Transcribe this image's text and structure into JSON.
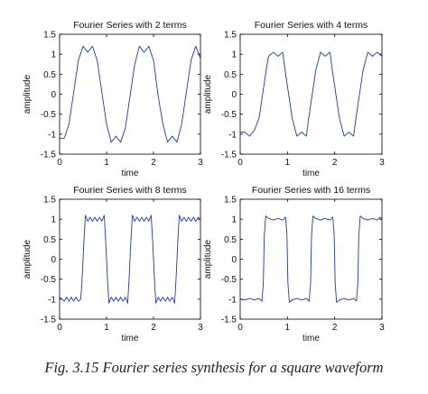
{
  "caption": "Fig. 3.15 Fourier series synthesis for a square waveform",
  "colors": {
    "line": "#1f3c9e",
    "axes": "#000000",
    "background": "#ffffff"
  },
  "chart_data": [
    {
      "type": "line",
      "title": "Fourier Series with 2 terms",
      "xlabel": "time",
      "ylabel": "amplitude",
      "xlim": [
        0,
        3
      ],
      "ylim": [
        -1.5,
        1.5
      ],
      "xticks": [
        0,
        1,
        2,
        3
      ],
      "yticks": [
        -1.5,
        -1,
        -0.5,
        0,
        0.5,
        1,
        1.5
      ],
      "grid": false,
      "series": [
        {
          "terms": 2,
          "x": [
            0,
            0.1,
            0.2,
            0.3,
            0.4,
            0.5,
            0.6,
            0.7,
            0.8,
            0.9,
            1.0,
            1.1,
            1.2,
            1.3,
            1.4,
            1.5,
            1.6,
            1.7,
            1.8,
            1.9,
            2.0,
            2.1,
            2.2,
            2.3,
            2.4,
            2.5,
            2.6,
            2.7,
            2.8,
            2.9,
            3.0
          ],
          "y": [
            -1.1,
            -1.1,
            -0.75,
            0.05,
            0.85,
            1.2,
            1.05,
            1.2,
            0.85,
            0.05,
            -0.75,
            -1.2,
            -1.05,
            -1.2,
            -0.85,
            -0.05,
            0.75,
            1.2,
            1.05,
            1.2,
            0.85,
            -0.05,
            -0.75,
            -1.2,
            -1.05,
            -1.2,
            -0.75,
            0.05,
            0.85,
            1.2,
            0.9
          ]
        }
      ]
    },
    {
      "type": "line",
      "title": "Fourier Series with 4 terms",
      "xlabel": "time",
      "ylabel": "amplitude",
      "xlim": [
        0,
        3
      ],
      "ylim": [
        -1.5,
        1.5
      ],
      "xticks": [
        0,
        1,
        2,
        3
      ],
      "yticks": [
        -1.5,
        -1,
        -0.5,
        0,
        0.5,
        1,
        1.5
      ],
      "grid": false,
      "series": [
        {
          "terms": 4,
          "x": [
            0,
            0.1,
            0.2,
            0.3,
            0.4,
            0.45,
            0.5,
            0.55,
            0.6,
            0.7,
            0.8,
            0.9,
            0.95,
            1.0,
            1.05,
            1.1,
            1.2,
            1.3,
            1.4,
            1.45,
            1.5,
            1.55,
            1.6,
            1.7,
            1.8,
            1.9,
            1.95,
            2.0,
            2.05,
            2.1,
            2.2,
            2.3,
            2.4,
            2.45,
            2.5,
            2.55,
            2.6,
            2.7,
            2.8,
            2.9,
            3.0
          ],
          "y": [
            -0.95,
            -0.95,
            -1.05,
            -0.9,
            -0.6,
            -0.2,
            0.2,
            0.6,
            0.95,
            1.05,
            0.95,
            1.05,
            0.6,
            0.2,
            -0.2,
            -0.6,
            -1.05,
            -0.95,
            -1.05,
            -0.6,
            -0.2,
            0.2,
            0.6,
            1.05,
            0.95,
            1.05,
            0.6,
            0.2,
            -0.2,
            -0.6,
            -1.05,
            -0.95,
            -1.05,
            -0.6,
            -0.2,
            0.2,
            0.6,
            1.05,
            0.95,
            1.05,
            0.95
          ]
        }
      ]
    },
    {
      "type": "line",
      "title": "Fourier Series with 8 terms",
      "xlabel": "time",
      "ylabel": "amplitude",
      "xlim": [
        0,
        3
      ],
      "ylim": [
        -1.5,
        1.5
      ],
      "xticks": [
        0,
        1,
        2,
        3
      ],
      "yticks": [
        -1.5,
        -1,
        -0.5,
        0,
        0.5,
        1,
        1.5
      ],
      "grid": false,
      "series": [
        {
          "terms": 8,
          "x": [
            0,
            0.05,
            0.1,
            0.15,
            0.2,
            0.25,
            0.3,
            0.35,
            0.4,
            0.45,
            0.48,
            0.5,
            0.52,
            0.55,
            0.6,
            0.65,
            0.7,
            0.75,
            0.8,
            0.85,
            0.9,
            0.95,
            0.98,
            1.0,
            1.02,
            1.05,
            1.1,
            1.15,
            1.2,
            1.25,
            1.3,
            1.35,
            1.4,
            1.45,
            1.48,
            1.5,
            1.52,
            1.55,
            1.6,
            1.65,
            1.7,
            1.75,
            1.8,
            1.85,
            1.9,
            1.95,
            1.98,
            2.0,
            2.02,
            2.05,
            2.1,
            2.15,
            2.2,
            2.25,
            2.3,
            2.35,
            2.4,
            2.45,
            2.48,
            2.5,
            2.52,
            2.55,
            2.6,
            2.65,
            2.7,
            2.75,
            2.8,
            2.85,
            2.9,
            2.95,
            3.0
          ],
          "y": [
            -0.95,
            -1.0,
            -1.05,
            -0.95,
            -1.05,
            -0.95,
            -1.05,
            -0.95,
            -1.05,
            -1.0,
            -0.5,
            0.0,
            0.5,
            1.1,
            0.95,
            1.05,
            0.95,
            1.05,
            0.95,
            1.05,
            0.95,
            1.1,
            0.5,
            0.0,
            -0.5,
            -1.1,
            -0.95,
            -1.05,
            -0.95,
            -1.05,
            -0.95,
            -1.05,
            -0.95,
            -1.1,
            -0.5,
            0.0,
            0.5,
            1.1,
            0.95,
            1.05,
            0.95,
            1.05,
            0.95,
            1.05,
            0.95,
            1.1,
            0.5,
            0.0,
            -0.5,
            -1.1,
            -0.95,
            -1.05,
            -0.95,
            -1.05,
            -0.95,
            -1.05,
            -0.95,
            -1.1,
            -0.5,
            0.0,
            0.5,
            1.1,
            0.95,
            1.05,
            0.95,
            1.05,
            0.95,
            1.05,
            0.95,
            1.05,
            1.0
          ]
        }
      ]
    },
    {
      "type": "line",
      "title": "Fourier Series with 16 terms",
      "xlabel": "time",
      "ylabel": "amplitude",
      "xlim": [
        0,
        3
      ],
      "ylim": [
        -1.5,
        1.5
      ],
      "xticks": [
        0,
        1,
        2,
        3
      ],
      "yticks": [
        -1.5,
        -1,
        -0.5,
        0,
        0.5,
        1,
        1.5
      ],
      "grid": false,
      "series": [
        {
          "terms": 16,
          "x": [
            0,
            0.1,
            0.2,
            0.3,
            0.4,
            0.46,
            0.49,
            0.5,
            0.51,
            0.54,
            0.6,
            0.7,
            0.8,
            0.9,
            0.96,
            0.99,
            1.0,
            1.01,
            1.04,
            1.1,
            1.2,
            1.3,
            1.4,
            1.46,
            1.49,
            1.5,
            1.51,
            1.54,
            1.6,
            1.7,
            1.8,
            1.9,
            1.96,
            1.99,
            2.0,
            2.01,
            2.04,
            2.1,
            2.2,
            2.3,
            2.4,
            2.46,
            2.49,
            2.5,
            2.51,
            2.54,
            2.6,
            2.7,
            2.8,
            2.9,
            2.96,
            3.0
          ],
          "y": [
            -1.0,
            -1.02,
            -0.98,
            -1.02,
            -0.98,
            -1.05,
            -0.6,
            0.0,
            0.6,
            1.08,
            1.02,
            0.98,
            1.02,
            0.98,
            1.05,
            0.6,
            0.0,
            -0.6,
            -1.08,
            -1.02,
            -0.98,
            -1.02,
            -0.98,
            -1.05,
            -0.6,
            0.0,
            0.6,
            1.08,
            1.02,
            0.98,
            1.02,
            0.98,
            1.05,
            0.6,
            0.0,
            -0.6,
            -1.08,
            -1.02,
            -0.98,
            -1.02,
            -0.98,
            -1.05,
            -0.6,
            0.0,
            0.6,
            1.08,
            1.02,
            0.98,
            1.02,
            0.98,
            1.05,
            1.0
          ]
        }
      ]
    }
  ]
}
